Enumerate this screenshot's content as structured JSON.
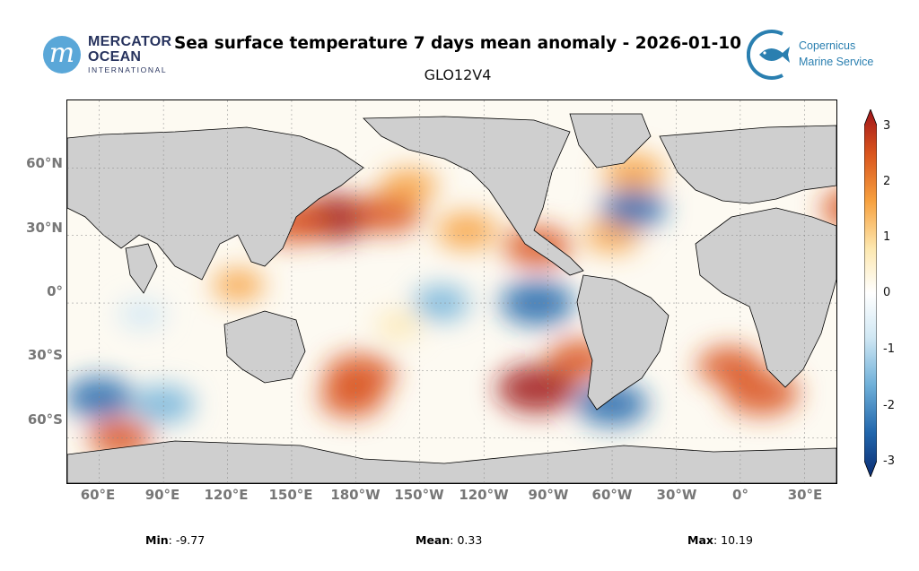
{
  "header": {
    "title": "Sea surface temperature 7 days mean anomaly - 2026-01-10",
    "subtitle": "GLO12V4"
  },
  "logos": {
    "mercator": {
      "line1": "MERCATOR",
      "line2": "OCEAN",
      "line3": "INTERNATIONAL",
      "glyph": "m"
    },
    "copernicus": {
      "line1": "Copernicus",
      "line2": "Marine Service"
    }
  },
  "map": {
    "lat_labels": [
      "60°N",
      "30°N",
      "0°",
      "30°S",
      "60°S"
    ],
    "lat_values": [
      60,
      30,
      0,
      -30,
      -60
    ],
    "lon_labels": [
      "60°E",
      "90°E",
      "120°E",
      "150°E",
      "180°W",
      "150°W",
      "120°W",
      "90°W",
      "60°W",
      "30°W",
      "0°",
      "30°E"
    ],
    "lon_values": [
      60,
      90,
      120,
      150,
      180,
      210,
      240,
      270,
      300,
      330,
      360,
      390
    ],
    "lon_range_east": [
      45,
      405
    ],
    "lat_range": [
      -80,
      90
    ],
    "land_color": "#cfcfcf",
    "anomaly_regions": [
      {
        "lon": 170,
        "lat": 38,
        "value": 2.8
      },
      {
        "lon": 150,
        "lat": 36,
        "value": 2.5
      },
      {
        "lon": 195,
        "lat": 40,
        "value": 2.2
      },
      {
        "lon": 205,
        "lat": 52,
        "value": 1.5
      },
      {
        "lon": 232,
        "lat": 32,
        "value": 1.8
      },
      {
        "lon": 265,
        "lat": -38,
        "value": 3.0
      },
      {
        "lon": 285,
        "lat": -25,
        "value": 2.0
      },
      {
        "lon": 182,
        "lat": -32,
        "value": 2.4
      },
      {
        "lon": 178,
        "lat": -42,
        "value": 2.0
      },
      {
        "lon": 355,
        "lat": -28,
        "value": 2.0
      },
      {
        "lon": 370,
        "lat": -40,
        "value": 2.6
      },
      {
        "lon": 265,
        "lat": 25,
        "value": 2.2
      },
      {
        "lon": 300,
        "lat": 30,
        "value": 1.4
      },
      {
        "lon": 310,
        "lat": 58,
        "value": 1.8
      },
      {
        "lon": 415,
        "lat": 42,
        "value": 2.5
      },
      {
        "lon": 70,
        "lat": -60,
        "value": 2.0
      },
      {
        "lon": 125,
        "lat": 8,
        "value": 1.2
      },
      {
        "lon": 200,
        "lat": -10,
        "value": 0.8
      },
      {
        "lon": 300,
        "lat": -45,
        "value": -2.4
      },
      {
        "lon": 60,
        "lat": -42,
        "value": -2.2
      },
      {
        "lon": 90,
        "lat": -45,
        "value": -1.8
      },
      {
        "lon": 265,
        "lat": 0,
        "value": -2.6
      },
      {
        "lon": 220,
        "lat": 0,
        "value": -1.5
      },
      {
        "lon": 310,
        "lat": 42,
        "value": -2.0
      },
      {
        "lon": 80,
        "lat": -5,
        "value": -1.0
      }
    ]
  },
  "colorbar": {
    "min": -3,
    "max": 3,
    "tick_labels": [
      "3",
      "2",
      "1",
      "0",
      "-1",
      "-2",
      "-3"
    ],
    "tick_values": [
      3,
      2,
      1,
      0,
      -1,
      -2,
      -3
    ],
    "colors": [
      "#0b2d73",
      "#2166ac",
      "#6fb0d9",
      "#d1e8f4",
      "#ffffff",
      "#fde8b0",
      "#f7a13f",
      "#d9541d",
      "#a0141a"
    ]
  },
  "stats": {
    "min_label": "Min",
    "min_value": "-9.77",
    "mean_label": "Mean",
    "mean_value": "0.33",
    "max_label": "Max",
    "max_value": "10.19"
  }
}
